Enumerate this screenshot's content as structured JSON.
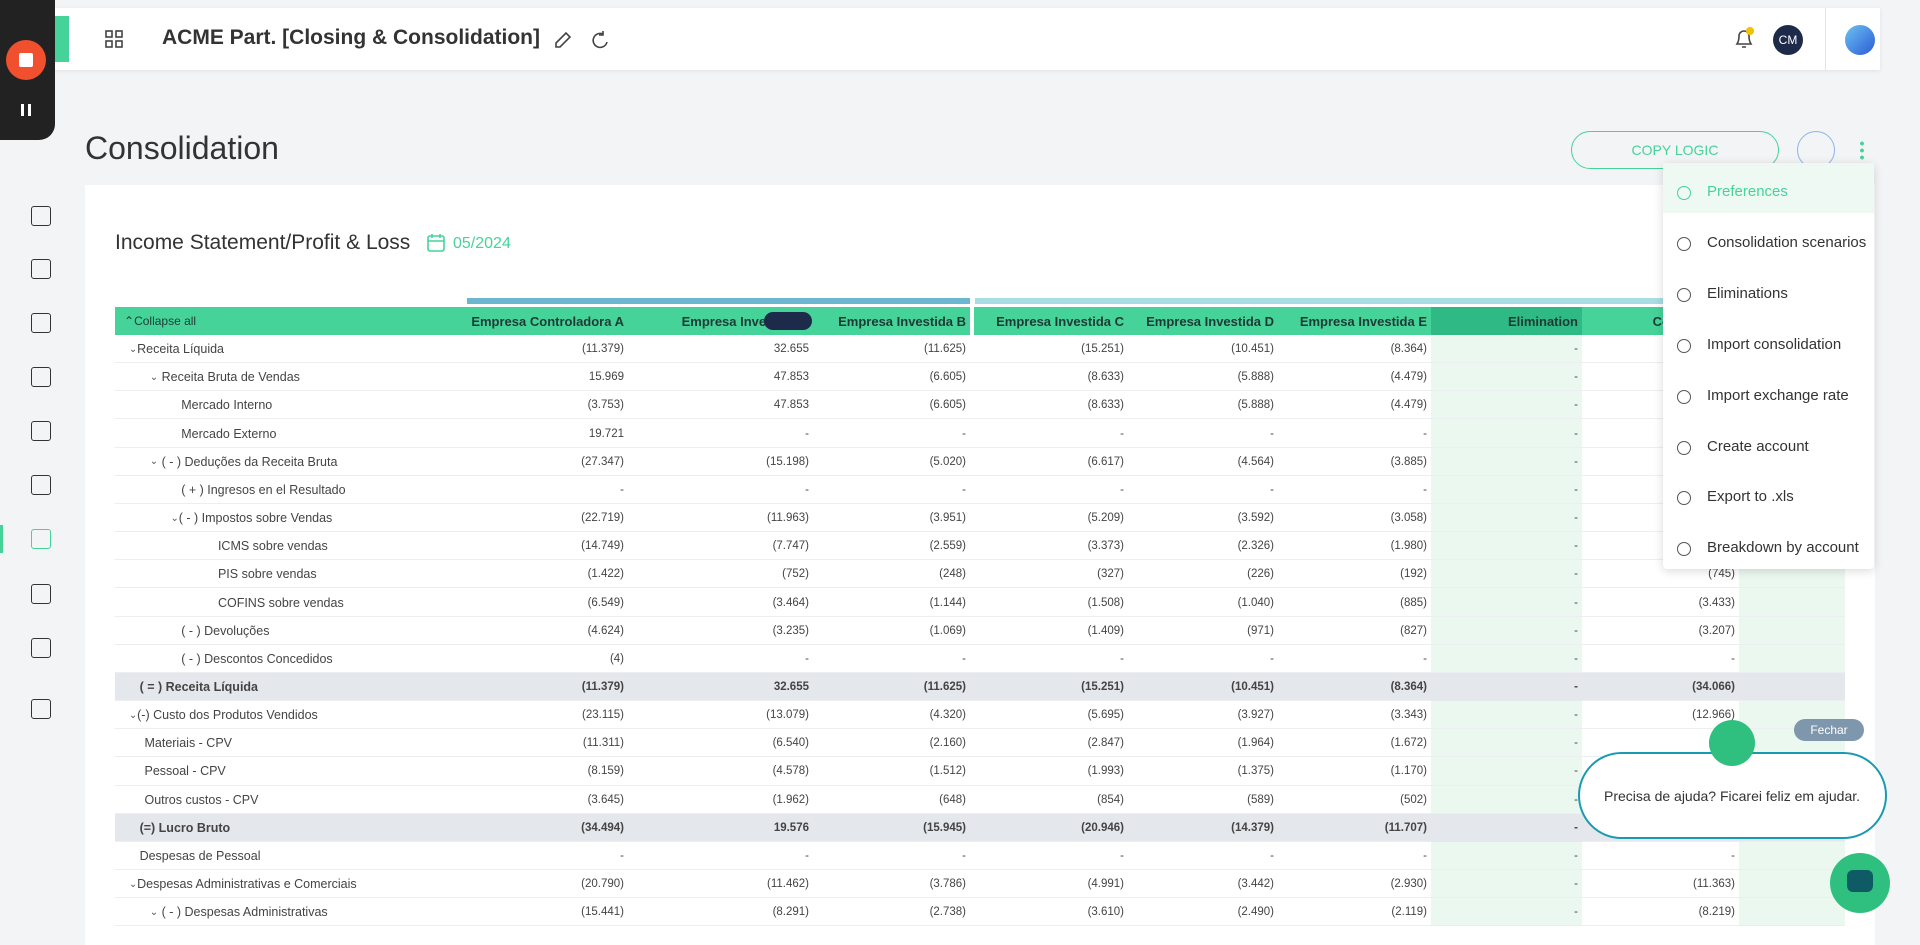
{
  "header": {
    "title": "ACME Part. [Closing & Consolidation]",
    "avatar": "CM"
  },
  "page": {
    "title": "Consolidation",
    "copy_button": "COPY LOGIC"
  },
  "report": {
    "title": "Income Statement/Profit & Loss",
    "date": "05/2024"
  },
  "table": {
    "collapse": "Collapse all",
    "columns": [
      "Empresa Controladora A",
      "Empresa Investida A",
      "Empresa Investida B",
      "Empresa Investida C",
      "Empresa Investida D",
      "Empresa Investida E",
      "Elimination",
      "Consolidated"
    ],
    "rows": [
      {
        "label": "Receita Líquida",
        "values": [
          "(11.379)",
          "32.655",
          "(11.625)",
          "(15.251)",
          "(10.451)",
          "(8.364)",
          "-",
          null
        ]
      },
      {
        "label": "Receita Bruta de Vendas",
        "values": [
          "15.969",
          "47.853",
          "(6.605)",
          "(8.633)",
          "(5.888)",
          "(4.479)",
          "-",
          null
        ]
      },
      {
        "label": "Mercado Interno",
        "values": [
          "(3.753)",
          "47.853",
          "(6.605)",
          "(8.633)",
          "(5.888)",
          "(4.479)",
          "-",
          null
        ]
      },
      {
        "label": "Mercado Externo",
        "values": [
          "19.721",
          "-",
          "-",
          "-",
          "-",
          "-",
          "-",
          null
        ]
      },
      {
        "label": "( - ) Deduções da Receita Bruta",
        "values": [
          "(27.347)",
          "(15.198)",
          "(5.020)",
          "(6.617)",
          "(4.564)",
          "(3.885)",
          "-",
          null
        ]
      },
      {
        "label": "( + ) Ingresos en el Resultado",
        "values": [
          "-",
          "-",
          "-",
          "-",
          "-",
          "-",
          "-",
          null
        ]
      },
      {
        "label": "( - ) Impostos sobre Vendas",
        "values": [
          "(22.719)",
          "(11.963)",
          "(3.951)",
          "(5.209)",
          "(3.592)",
          "(3.058)",
          "-",
          null
        ]
      },
      {
        "label": "ICMS sobre vendas",
        "values": [
          "(14.749)",
          "(7.747)",
          "(2.559)",
          "(3.373)",
          "(2.326)",
          "(1.980)",
          "-",
          null
        ]
      },
      {
        "label": "PIS sobre vendas",
        "values": [
          "(1.422)",
          "(752)",
          "(248)",
          "(327)",
          "(226)",
          "(192)",
          "-",
          "(745)"
        ]
      },
      {
        "label": "COFINS sobre vendas",
        "values": [
          "(6.549)",
          "(3.464)",
          "(1.144)",
          "(1.508)",
          "(1.040)",
          "(885)",
          "-",
          "(3.433)"
        ]
      },
      {
        "label": "( - ) Devoluções",
        "values": [
          "(4.624)",
          "(3.235)",
          "(1.069)",
          "(1.409)",
          "(971)",
          "(827)",
          "-",
          "(3.207)"
        ]
      },
      {
        "label": "( - ) Descontos Concedidos",
        "values": [
          "(4)",
          "-",
          "-",
          "-",
          "-",
          "-",
          "-",
          "-"
        ]
      },
      {
        "label": "( = ) Receita Líquida",
        "values": [
          "(11.379)",
          "32.655",
          "(11.625)",
          "(15.251)",
          "(10.451)",
          "(8.364)",
          "-",
          "(34.066)"
        ]
      },
      {
        "label": "(-) Custo dos Produtos Vendidos",
        "values": [
          "(23.115)",
          "(13.079)",
          "(4.320)",
          "(5.695)",
          "(3.927)",
          "(3.343)",
          "-",
          "(12.966)"
        ]
      },
      {
        "label": "Materiais - CPV",
        "values": [
          "(11.311)",
          "(6.540)",
          "(2.160)",
          "(2.847)",
          "(1.964)",
          "(1.672)",
          "-",
          null
        ]
      },
      {
        "label": "Pessoal - CPV",
        "values": [
          "(8.159)",
          "(4.578)",
          "(1.512)",
          "(1.993)",
          "(1.375)",
          "(1.170)",
          "-",
          null
        ]
      },
      {
        "label": "Outros custos - CPV",
        "values": [
          "(3.645)",
          "(1.962)",
          "(648)",
          "(854)",
          "(589)",
          "(502)",
          "-",
          null
        ]
      },
      {
        "label": "(=) Lucro Bruto",
        "values": [
          "(34.494)",
          "19.576",
          "(15.945)",
          "(20.946)",
          "(14.379)",
          "(11.707)",
          "-",
          null
        ]
      },
      {
        "label": "Despesas de Pessoal",
        "values": [
          "-",
          "-",
          "-",
          "-",
          "-",
          "-",
          "-",
          "-"
        ]
      },
      {
        "label": "Despesas Administrativas e Comerciais",
        "values": [
          "(20.790)",
          "(11.462)",
          "(3.786)",
          "(4.991)",
          "(3.442)",
          "(2.930)",
          "-",
          "(11.363)"
        ]
      },
      {
        "label": "( - ) Despesas Administrativas",
        "values": [
          "(15.441)",
          "(8.291)",
          "(2.738)",
          "(3.610)",
          "(2.490)",
          "(2.119)",
          "-",
          "(8.219)"
        ]
      }
    ]
  },
  "menu": [
    "Preferences",
    "Consolidation scenarios",
    "Eliminations",
    "Import consolidation",
    "Import exchange rate",
    "Create account",
    "Export to .xls",
    "Breakdown by account"
  ],
  "chat": {
    "close": "Fechar",
    "message": "Precisa de ajuda? Ficarei feliz em ajudar."
  }
}
